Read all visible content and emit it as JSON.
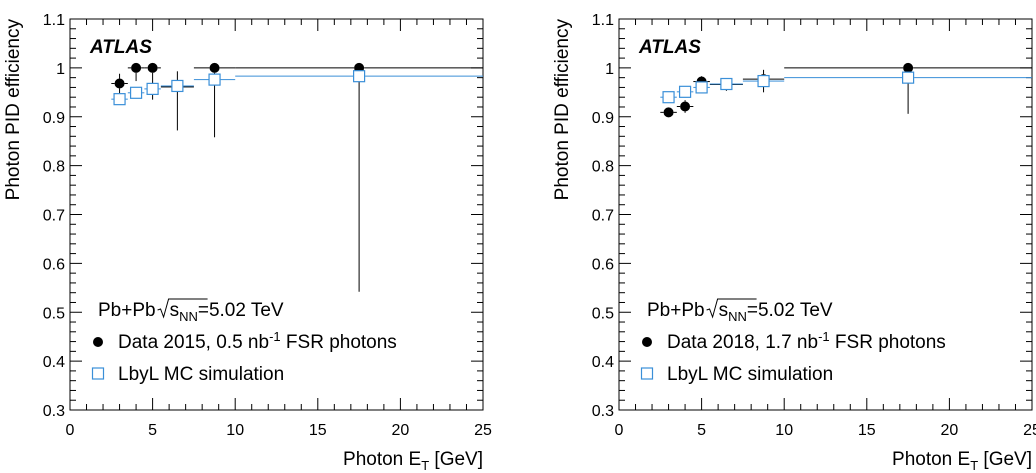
{
  "chart_data": [
    {
      "type": "scatter",
      "experiment_label": "ATLAS",
      "xlabel": "Photon E",
      "xlabel_sub": "T",
      "xlabel_unit": "[GeV]",
      "ylabel": "Photon PID efficiency",
      "xlim": [
        0,
        25
      ],
      "ylim": [
        0.3,
        1.1
      ],
      "x_ticks": [
        0,
        5,
        10,
        15,
        20,
        25
      ],
      "y_ticks": [
        0.3,
        0.4,
        0.5,
        0.6,
        0.7,
        0.8,
        0.9,
        1,
        1.1
      ],
      "collision_label_prefix": "Pb+Pb ",
      "collision_label_sqrt": "s",
      "collision_label_sub": "NN",
      "collision_label_suffix": "=5.02 TeV",
      "series": [
        {
          "name": "Data 2015, 0.5 nb",
          "name_sup": "-1",
          "name_suffix": " FSR photons",
          "marker": "filled-circle",
          "color": "#000000",
          "points": [
            {
              "x": 3.0,
              "xlo": 2.5,
              "xhi": 3.5,
              "y": 0.968,
              "ylo": 0.948,
              "yhi": 0.988
            },
            {
              "x": 4.0,
              "xlo": 3.5,
              "xhi": 4.5,
              "y": 1.0,
              "ylo": 0.973,
              "yhi": 1.0
            },
            {
              "x": 5.0,
              "xlo": 4.5,
              "xhi": 5.5,
              "y": 1.0,
              "ylo": 0.935,
              "yhi": 1.0
            },
            {
              "x": 6.5,
              "xlo": 5.5,
              "xhi": 7.5,
              "y": 0.961,
              "ylo": 0.872,
              "yhi": 0.993
            },
            {
              "x": 8.75,
              "xlo": 7.5,
              "xhi": 10.0,
              "y": 1.0,
              "ylo": 0.858,
              "yhi": 1.0
            },
            {
              "x": 17.5,
              "xlo": 10.0,
              "xhi": 25.0,
              "y": 1.0,
              "ylo": 0.542,
              "yhi": 1.0
            }
          ]
        },
        {
          "name": "LbyL MC simulation",
          "marker": "open-square",
          "color": "#3a8fd8",
          "points": [
            {
              "x": 3.0,
              "xlo": 2.5,
              "xhi": 3.5,
              "y": 0.936,
              "ylo": 0.926,
              "yhi": 0.946
            },
            {
              "x": 4.0,
              "xlo": 3.5,
              "xhi": 4.5,
              "y": 0.949,
              "ylo": 0.941,
              "yhi": 0.957
            },
            {
              "x": 5.0,
              "xlo": 4.5,
              "xhi": 5.5,
              "y": 0.957,
              "ylo": 0.95,
              "yhi": 0.964
            },
            {
              "x": 6.5,
              "xlo": 5.5,
              "xhi": 7.5,
              "y": 0.963,
              "ylo": 0.957,
              "yhi": 0.969
            },
            {
              "x": 8.75,
              "xlo": 7.5,
              "xhi": 10.0,
              "y": 0.976,
              "ylo": 0.97,
              "yhi": 0.982
            },
            {
              "x": 17.5,
              "xlo": 10.0,
              "xhi": 25.0,
              "y": 0.983,
              "ylo": 0.978,
              "yhi": 0.988
            }
          ]
        }
      ]
    },
    {
      "type": "scatter",
      "experiment_label": "ATLAS",
      "xlabel": "Photon E",
      "xlabel_sub": "T",
      "xlabel_unit": "[GeV]",
      "ylabel": "Photon PID efficiency",
      "xlim": [
        0,
        25
      ],
      "ylim": [
        0.3,
        1.1
      ],
      "x_ticks": [
        0,
        5,
        10,
        15,
        20,
        25
      ],
      "y_ticks": [
        0.3,
        0.4,
        0.5,
        0.6,
        0.7,
        0.8,
        0.9,
        1,
        1.1
      ],
      "collision_label_prefix": "Pb+Pb ",
      "collision_label_sqrt": "s",
      "collision_label_sub": "NN",
      "collision_label_suffix": "=5.02 TeV",
      "series": [
        {
          "name": "Data 2018, 1.7 nb",
          "name_sup": "-1",
          "name_suffix": " FSR photons",
          "marker": "filled-circle",
          "color": "#000000",
          "points": [
            {
              "x": 3.0,
              "xlo": 2.5,
              "xhi": 3.5,
              "y": 0.909,
              "ylo": 0.899,
              "yhi": 0.919
            },
            {
              "x": 4.0,
              "xlo": 3.5,
              "xhi": 4.5,
              "y": 0.921,
              "ylo": 0.908,
              "yhi": 0.934
            },
            {
              "x": 5.0,
              "xlo": 4.5,
              "xhi": 5.5,
              "y": 0.972,
              "ylo": 0.961,
              "yhi": 0.983
            },
            {
              "x": 6.5,
              "xlo": 5.5,
              "xhi": 7.5,
              "y": 0.966,
              "ylo": 0.953,
              "yhi": 0.979
            },
            {
              "x": 8.75,
              "xlo": 7.5,
              "xhi": 10.0,
              "y": 0.977,
              "ylo": 0.95,
              "yhi": 0.996
            },
            {
              "x": 17.5,
              "xlo": 10.0,
              "xhi": 25.0,
              "y": 1.0,
              "ylo": 0.906,
              "yhi": 1.0
            }
          ]
        },
        {
          "name": "LbyL MC simulation",
          "marker": "open-square",
          "color": "#3a8fd8",
          "points": [
            {
              "x": 3.0,
              "xlo": 2.5,
              "xhi": 3.5,
              "y": 0.94,
              "ylo": 0.93,
              "yhi": 0.95
            },
            {
              "x": 4.0,
              "xlo": 3.5,
              "xhi": 4.5,
              "y": 0.951,
              "ylo": 0.943,
              "yhi": 0.959
            },
            {
              "x": 5.0,
              "xlo": 4.5,
              "xhi": 5.5,
              "y": 0.96,
              "ylo": 0.953,
              "yhi": 0.967
            },
            {
              "x": 6.5,
              "xlo": 5.5,
              "xhi": 7.5,
              "y": 0.967,
              "ylo": 0.961,
              "yhi": 0.973
            },
            {
              "x": 8.75,
              "xlo": 7.5,
              "xhi": 10.0,
              "y": 0.973,
              "ylo": 0.967,
              "yhi": 0.979
            },
            {
              "x": 17.5,
              "xlo": 10.0,
              "xhi": 25.0,
              "y": 0.98,
              "ylo": 0.975,
              "yhi": 0.985
            }
          ]
        }
      ]
    }
  ]
}
